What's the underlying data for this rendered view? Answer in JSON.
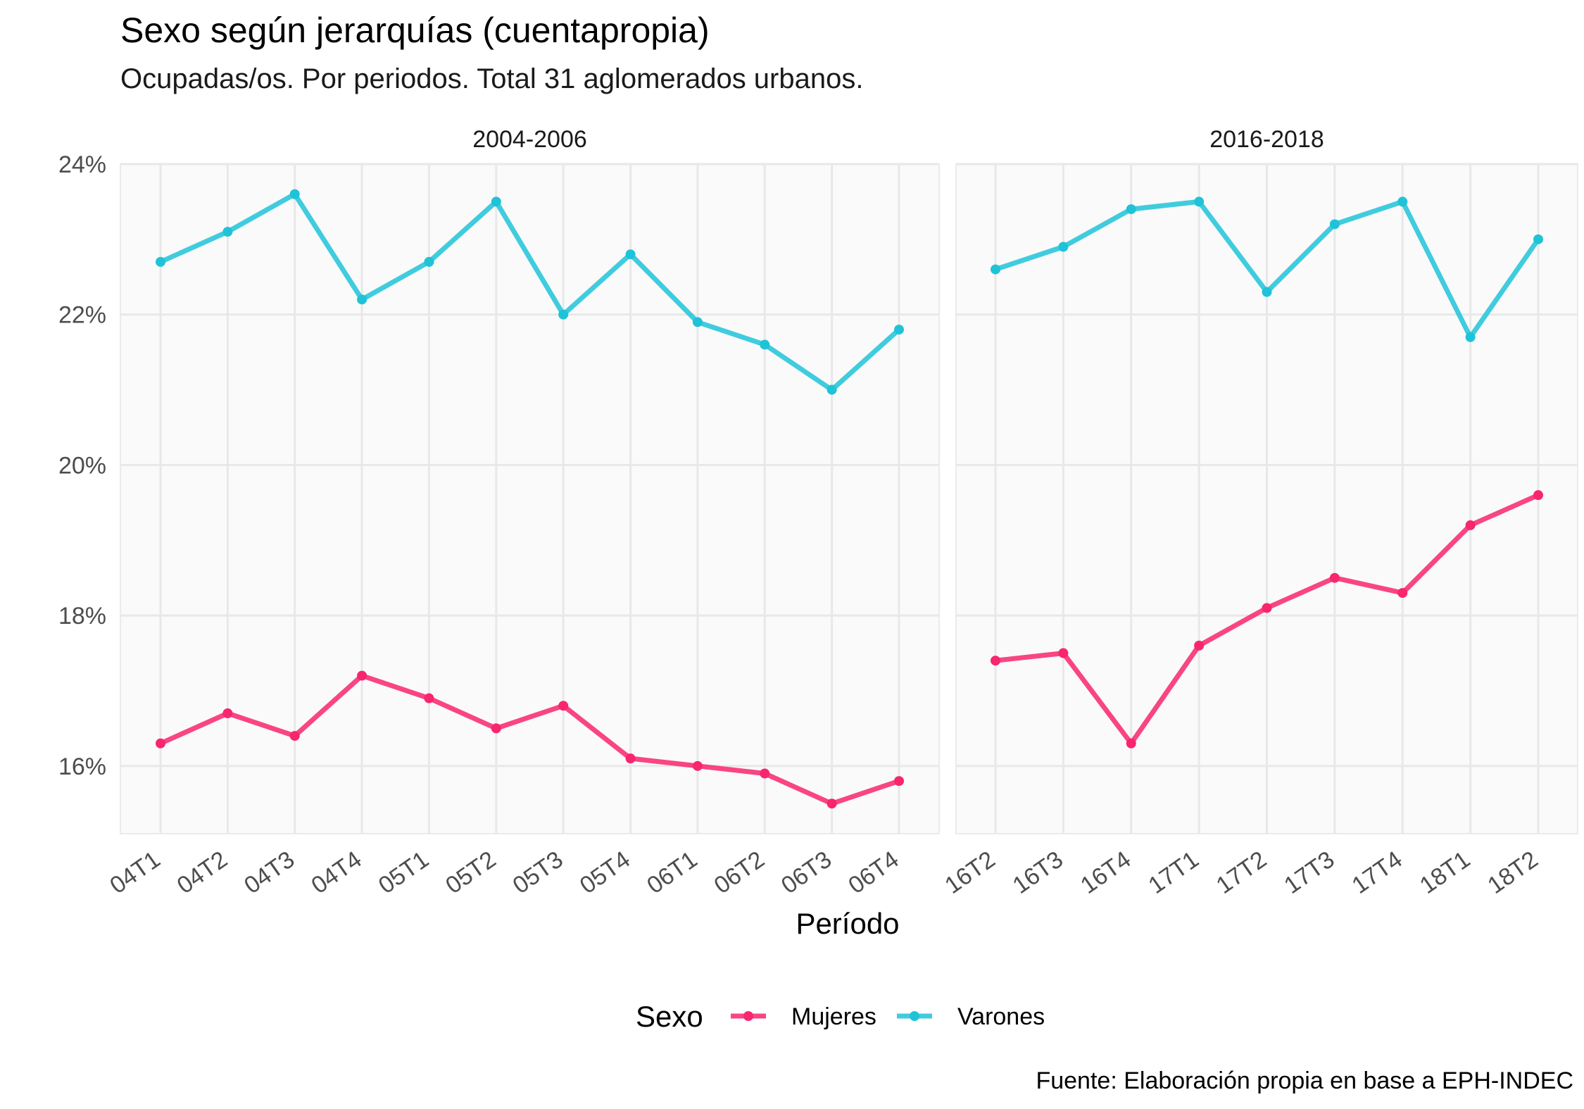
{
  "chart_data": {
    "type": "line",
    "title": "Sexo según jerarquías (cuentapropia)",
    "subtitle": "Ocupadas/os. Por periodos. Total 31 aglomerados urbanos.",
    "xlabel": "Período",
    "ylabel": "",
    "caption": "Fuente: Elaboración propia en base a EPH-INDEC",
    "ylim": [
      15.1,
      24.0
    ],
    "yticks": [
      16,
      18,
      20,
      22,
      24
    ],
    "ytick_labels": [
      "16%",
      "18%",
      "20%",
      "22%",
      "24%"
    ],
    "grid": true,
    "legend": {
      "title": "Sexo",
      "position": "bottom",
      "items": [
        "Mujeres",
        "Varones"
      ]
    },
    "colors": {
      "Mujeres": "#f8256f",
      "Varones": "#1fc3d8"
    },
    "panels": [
      {
        "label": "2004-2006",
        "categories": [
          "04T1",
          "04T2",
          "04T3",
          "04T4",
          "05T1",
          "05T2",
          "05T3",
          "05T4",
          "06T1",
          "06T2",
          "06T3",
          "06T4"
        ],
        "series": [
          {
            "name": "Mujeres",
            "values": [
              16.3,
              16.7,
              16.4,
              17.2,
              16.9,
              16.5,
              16.8,
              16.1,
              16.0,
              15.9,
              15.5,
              15.8
            ]
          },
          {
            "name": "Varones",
            "values": [
              22.7,
              23.1,
              23.6,
              22.2,
              22.7,
              23.5,
              22.0,
              22.8,
              21.9,
              21.6,
              21.0,
              21.8
            ]
          }
        ]
      },
      {
        "label": "2016-2018",
        "categories": [
          "16T2",
          "16T3",
          "16T4",
          "17T1",
          "17T2",
          "17T3",
          "17T4",
          "18T1",
          "18T2"
        ],
        "series": [
          {
            "name": "Mujeres",
            "values": [
              17.4,
              17.5,
              16.3,
              17.6,
              18.1,
              18.5,
              18.3,
              19.2,
              19.6
            ]
          },
          {
            "name": "Varones",
            "values": [
              22.6,
              22.9,
              23.4,
              23.5,
              22.3,
              23.2,
              23.5,
              21.7,
              23.0
            ]
          }
        ]
      }
    ]
  }
}
